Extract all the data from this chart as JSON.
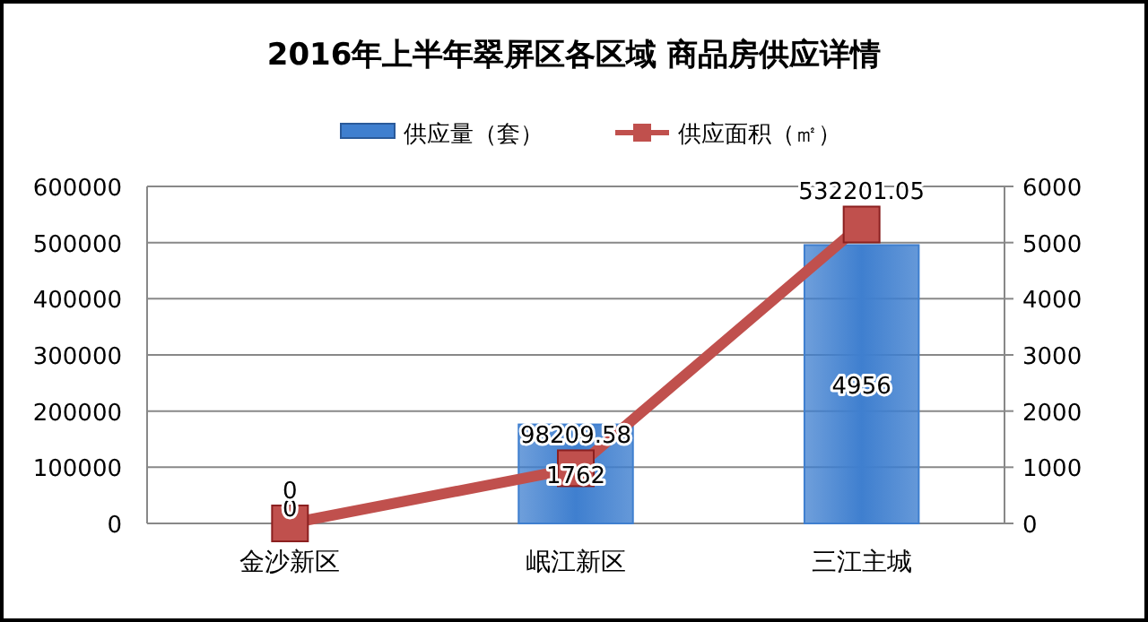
{
  "chart_data": {
    "type": "bar",
    "title": "2016年上半年翠屏区各区域 商品房供应详情",
    "categories": [
      "金沙新区",
      "岷江新区",
      "三江主城"
    ],
    "series": [
      {
        "name": "供应量（套）",
        "axis": "y2",
        "color": "#3f7fcf",
        "values": [
          0,
          1762,
          4956
        ]
      },
      {
        "name": "供应面积（㎡）",
        "type": "line",
        "color": "#c0504d",
        "marker": "square",
        "values": [
          0,
          98209.58,
          532201.05
        ]
      }
    ],
    "ylim": [
      0,
      600000
    ],
    "yticks": [
      0,
      100000,
      200000,
      300000,
      400000,
      500000,
      600000
    ],
    "y2lim": [
      0,
      6000
    ],
    "y2ticks": [
      0,
      1000,
      2000,
      3000,
      4000,
      5000,
      6000
    ],
    "grid": "y",
    "legend": "top",
    "data_labels": true
  }
}
